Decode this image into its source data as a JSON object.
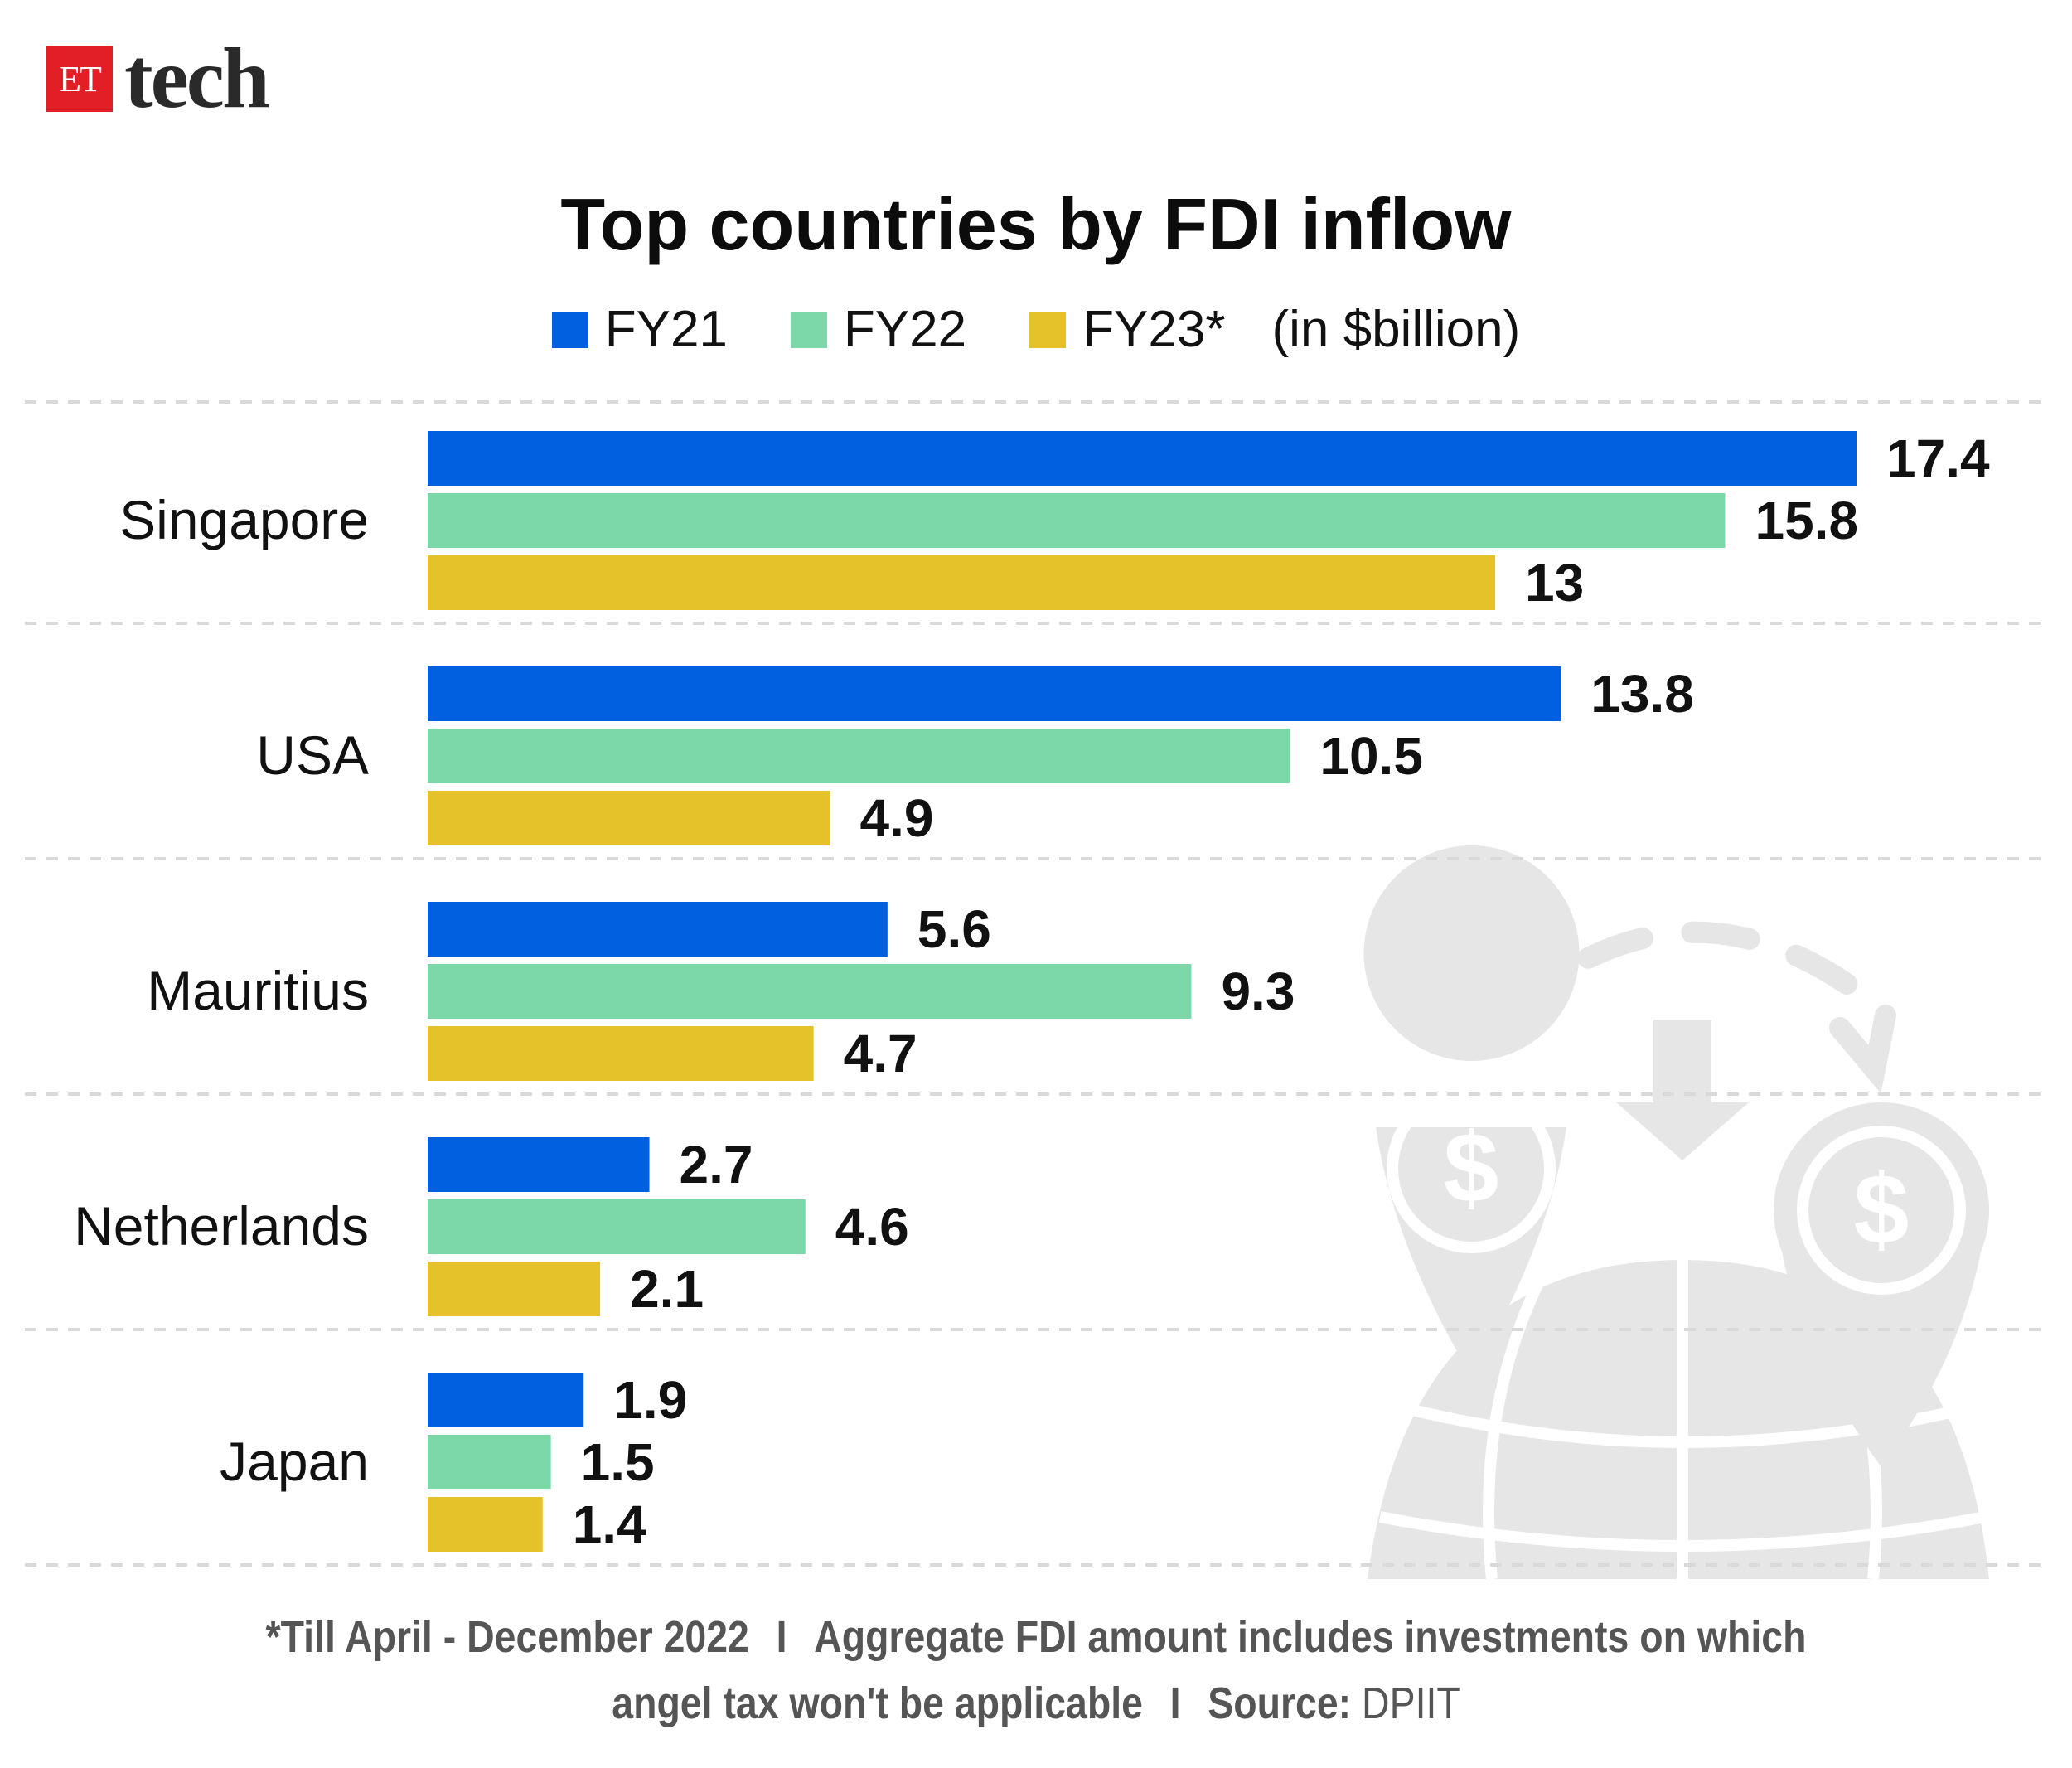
{
  "brand": {
    "logo_mark": "ET",
    "logo_word": "tech",
    "logo_color": "#e21f26"
  },
  "chart_data": {
    "type": "bar",
    "orientation": "horizontal",
    "title": "Top countries by FDI inflow",
    "unit_label": "(in $billion)",
    "categories": [
      "Singapore",
      "USA",
      "Mauritius",
      "Netherlands",
      "Japan"
    ],
    "series": [
      {
        "name": "FY21",
        "color": "#0060df",
        "values": [
          17.4,
          13.8,
          5.6,
          2.7,
          1.9
        ]
      },
      {
        "name": "FY22",
        "color": "#7dd8a9",
        "values": [
          15.8,
          10.5,
          9.3,
          4.6,
          1.5
        ]
      },
      {
        "name": "FY23*",
        "color": "#e5c22a",
        "values": [
          13,
          4.9,
          4.7,
          2.1,
          1.4
        ]
      }
    ],
    "value_labels": [
      [
        "17.4",
        "15.8",
        "13"
      ],
      [
        "13.8",
        "10.5",
        "4.9"
      ],
      [
        "5.6",
        "9.3",
        "4.7"
      ],
      [
        "2.7",
        "4.6",
        "2.1"
      ],
      [
        "1.9",
        "1.5",
        "1.4"
      ]
    ],
    "xlim": [
      0,
      17.4
    ],
    "grid": "dashed separators between groups",
    "legend": "top-center",
    "decoration_icon": "globe-money-transfer-icon"
  },
  "footnote": {
    "part1": "*Till April - December 2022",
    "separator": "I",
    "part2": "Aggregate FDI amount includes investments on which angel tax won't be applicable",
    "source_label": "Source:",
    "source_value": "DPIIT"
  }
}
